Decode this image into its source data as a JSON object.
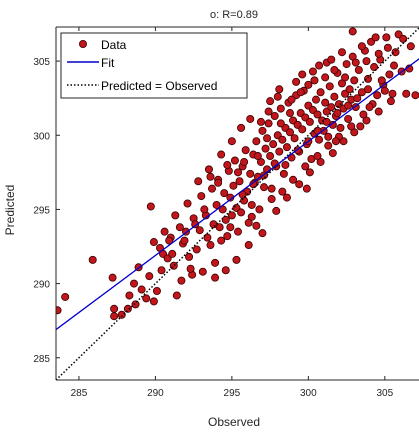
{
  "chart_data": {
    "type": "scatter",
    "title": "o: R=0.89",
    "xlabel": "Observed",
    "ylabel": "Predicted",
    "xlim": [
      283.5,
      307.3
    ],
    "ylim": [
      283.5,
      307.3
    ],
    "xticks": [
      285,
      290,
      295,
      300,
      305
    ],
    "yticks": [
      285,
      290,
      295,
      300,
      305
    ],
    "grid": false,
    "legend_position": "top-left",
    "legend": [
      {
        "label": "Data",
        "marker": "circle",
        "color": "#c0161c"
      },
      {
        "label": "Fit",
        "line": "solid",
        "color": "#0000cc"
      },
      {
        "label": "Predicted = Observed",
        "line": "dotted",
        "color": "#000000"
      }
    ],
    "colors": {
      "points": "#c0161c",
      "point_edge": "#3a0000",
      "fit": "#0000cc",
      "identity": "#000000"
    },
    "series": [
      {
        "name": "Data",
        "points": [
          [
            283.6,
            288.2
          ],
          [
            284.1,
            289.1
          ],
          [
            285.9,
            291.6
          ],
          [
            287.2,
            290.4
          ],
          [
            287.3,
            288.3
          ],
          [
            287.3,
            287.8
          ],
          [
            287.8,
            287.9
          ],
          [
            288.2,
            288.3
          ],
          [
            288.6,
            290.0
          ],
          [
            289.1,
            289.6
          ],
          [
            289.6,
            290.5
          ],
          [
            289.9,
            288.8
          ],
          [
            290.1,
            289.5
          ],
          [
            290.3,
            292.4
          ],
          [
            289.7,
            295.2
          ],
          [
            290.5,
            292.0
          ],
          [
            290.8,
            291.7
          ],
          [
            291.0,
            293.1
          ],
          [
            291.1,
            292.0
          ],
          [
            291.4,
            289.2
          ],
          [
            291.6,
            293.8
          ],
          [
            291.8,
            292.7
          ],
          [
            292.0,
            293.5
          ],
          [
            292.2,
            291.8
          ],
          [
            292.4,
            290.6
          ],
          [
            292.5,
            294.4
          ],
          [
            292.7,
            292.3
          ],
          [
            292.9,
            293.6
          ],
          [
            293.0,
            295.9
          ],
          [
            293.1,
            290.8
          ],
          [
            293.3,
            294.6
          ],
          [
            293.4,
            293.1
          ],
          [
            293.6,
            292.6
          ],
          [
            293.7,
            296.4
          ],
          [
            293.8,
            294.0
          ],
          [
            293.9,
            291.4
          ],
          [
            294.0,
            295.3
          ],
          [
            294.1,
            297.0
          ],
          [
            294.2,
            293.8
          ],
          [
            294.3,
            292.9
          ],
          [
            294.4,
            295.0
          ],
          [
            294.5,
            296.1
          ],
          [
            294.6,
            294.3
          ],
          [
            294.7,
            293.2
          ],
          [
            294.8,
            297.6
          ],
          [
            294.9,
            295.8
          ],
          [
            295.0,
            294.6
          ],
          [
            295.1,
            296.6
          ],
          [
            295.2,
            298.3
          ],
          [
            295.3,
            295.1
          ],
          [
            295.4,
            293.5
          ],
          [
            295.5,
            296.9
          ],
          [
            295.6,
            294.8
          ],
          [
            295.7,
            297.9
          ],
          [
            295.8,
            295.6
          ],
          [
            295.9,
            299.0
          ],
          [
            296.0,
            296.2
          ],
          [
            296.1,
            294.1
          ],
          [
            296.2,
            297.4
          ],
          [
            296.3,
            295.3
          ],
          [
            296.4,
            298.7
          ],
          [
            296.5,
            296.8
          ],
          [
            296.6,
            299.6
          ],
          [
            296.7,
            297.2
          ],
          [
            296.8,
            295.0
          ],
          [
            296.9,
            298.2
          ],
          [
            297.0,
            300.3
          ],
          [
            297.1,
            296.5
          ],
          [
            297.2,
            299.1
          ],
          [
            297.3,
            297.7
          ],
          [
            297.4,
            300.8
          ],
          [
            297.5,
            298.6
          ],
          [
            297.6,
            296.4
          ],
          [
            297.7,
            299.4
          ],
          [
            297.8,
            301.3
          ],
          [
            297.9,
            297.9
          ],
          [
            298.0,
            300.0
          ],
          [
            298.1,
            298.9
          ],
          [
            298.2,
            301.8
          ],
          [
            298.3,
            299.7
          ],
          [
            298.4,
            297.4
          ],
          [
            298.5,
            300.5
          ],
          [
            298.6,
            299.2
          ],
          [
            298.7,
            302.2
          ],
          [
            298.8,
            300.2
          ],
          [
            298.9,
            298.5
          ],
          [
            299.0,
            301.0
          ],
          [
            299.1,
            299.8
          ],
          [
            299.2,
            302.7
          ],
          [
            299.3,
            300.7
          ],
          [
            299.4,
            298.9
          ],
          [
            299.5,
            301.5
          ],
          [
            299.6,
            300.4
          ],
          [
            299.7,
            303.0
          ],
          [
            299.8,
            301.2
          ],
          [
            299.9,
            299.4
          ],
          [
            300.0,
            302.0
          ],
          [
            300.1,
            300.9
          ],
          [
            300.2,
            298.4
          ],
          [
            300.3,
            301.7
          ],
          [
            300.4,
            300.1
          ],
          [
            300.5,
            302.4
          ],
          [
            300.6,
            301.4
          ],
          [
            300.7,
            299.7
          ],
          [
            300.8,
            302.9
          ],
          [
            300.9,
            301.0
          ],
          [
            301.0,
            300.3
          ],
          [
            301.1,
            302.2
          ],
          [
            301.2,
            301.6
          ],
          [
            301.3,
            299.9
          ],
          [
            301.4,
            303.3
          ],
          [
            301.5,
            301.9
          ],
          [
            301.6,
            300.7
          ],
          [
            301.7,
            302.6
          ],
          [
            301.8,
            301.3
          ],
          [
            301.9,
            304.2
          ],
          [
            302.0,
            302.1
          ],
          [
            302.1,
            300.5
          ],
          [
            302.2,
            303.5
          ],
          [
            302.3,
            301.8
          ],
          [
            302.4,
            302.8
          ],
          [
            302.5,
            304.8
          ],
          [
            302.6,
            301.1
          ],
          [
            302.7,
            303.1
          ],
          [
            302.8,
            302.4
          ],
          [
            302.9,
            305.3
          ],
          [
            303.0,
            303.7
          ],
          [
            303.1,
            301.9
          ],
          [
            303.3,
            304.4
          ],
          [
            303.5,
            302.9
          ],
          [
            303.7,
            305.7
          ],
          [
            303.9,
            303.8
          ],
          [
            304.1,
            306.3
          ],
          [
            304.3,
            304.6
          ],
          [
            304.5,
            302.7
          ],
          [
            304.7,
            305.1
          ],
          [
            304.9,
            303.4
          ],
          [
            305.1,
            306.6
          ],
          [
            305.3,
            304.1
          ],
          [
            305.5,
            302.8
          ],
          [
            305.7,
            305.6
          ],
          [
            305.9,
            306.8
          ],
          [
            306.1,
            304.3
          ],
          [
            306.4,
            302.8
          ],
          [
            306.7,
            306.0
          ],
          [
            307.0,
            302.7
          ],
          [
            306.2,
            306.5
          ],
          [
            304.4,
            306.6
          ],
          [
            303.5,
            306.0
          ],
          [
            302.9,
            307.0
          ],
          [
            301.2,
            304.9
          ],
          [
            300.3,
            304.3
          ],
          [
            299.2,
            303.6
          ],
          [
            298.1,
            303.1
          ],
          [
            297.5,
            302.3
          ],
          [
            296.2,
            301.1
          ],
          [
            295.6,
            300.5
          ],
          [
            295.0,
            299.6
          ],
          [
            294.3,
            298.7
          ],
          [
            293.5,
            297.7
          ],
          [
            292.8,
            296.9
          ],
          [
            292.1,
            295.4
          ],
          [
            291.3,
            294.6
          ],
          [
            290.6,
            293.5
          ],
          [
            289.9,
            292.8
          ],
          [
            288.9,
            291.1
          ],
          [
            288.3,
            289.2
          ],
          [
            295.3,
            291.6
          ],
          [
            296.1,
            292.6
          ],
          [
            297.0,
            293.4
          ],
          [
            297.9,
            294.9
          ],
          [
            298.6,
            295.8
          ],
          [
            299.4,
            296.7
          ],
          [
            300.1,
            297.5
          ],
          [
            300.8,
            298.2
          ],
          [
            301.6,
            298.8
          ],
          [
            302.3,
            299.6
          ],
          [
            303.0,
            300.2
          ],
          [
            303.8,
            301.0
          ],
          [
            304.6,
            301.6
          ],
          [
            305.4,
            302.3
          ],
          [
            294.6,
            290.9
          ],
          [
            293.9,
            290.4
          ],
          [
            296.6,
            293.9
          ],
          [
            298.3,
            296.2
          ],
          [
            299.0,
            297.0
          ],
          [
            299.8,
            297.9
          ],
          [
            300.6,
            298.6
          ],
          [
            301.3,
            299.3
          ],
          [
            302.0,
            299.9
          ],
          [
            302.8,
            300.6
          ],
          [
            303.6,
            301.4
          ],
          [
            304.2,
            302.1
          ],
          [
            305.0,
            303.0
          ],
          [
            294.1,
            296.8
          ],
          [
            295.8,
            298.2
          ],
          [
            297.3,
            299.8
          ],
          [
            298.8,
            301.5
          ],
          [
            300.0,
            303.4
          ],
          [
            301.5,
            305.1
          ],
          [
            302.2,
            305.6
          ],
          [
            296.9,
            300.9
          ],
          [
            298.0,
            302.6
          ],
          [
            299.6,
            304.1
          ],
          [
            300.7,
            304.7
          ],
          [
            293.2,
            295.0
          ],
          [
            292.6,
            294.0
          ],
          [
            291.9,
            292.9
          ],
          [
            291.2,
            291.2
          ],
          [
            290.4,
            290.9
          ],
          [
            289.4,
            289.0
          ],
          [
            288.7,
            288.6
          ],
          [
            295.7,
            296.0
          ],
          [
            296.4,
            296.7
          ],
          [
            297.1,
            297.3
          ],
          [
            297.8,
            298.1
          ],
          [
            298.5,
            298.0
          ],
          [
            299.3,
            299.0
          ],
          [
            300.0,
            299.6
          ],
          [
            300.6,
            300.3
          ],
          [
            301.2,
            300.9
          ],
          [
            301.9,
            301.5
          ],
          [
            302.6,
            302.0
          ],
          [
            303.2,
            302.5
          ],
          [
            303.9,
            303.1
          ],
          [
            304.8,
            303.7
          ],
          [
            305.6,
            304.7
          ],
          [
            306.6,
            304.5
          ],
          [
            294.9,
            293.8
          ],
          [
            296.3,
            294.5
          ],
          [
            297.6,
            295.7
          ],
          [
            299.9,
            296.4
          ],
          [
            301.8,
            299.6
          ],
          [
            303.4,
            300.6
          ],
          [
            304.0,
            301.9
          ],
          [
            292.3,
            291.0
          ],
          [
            291.7,
            290.2
          ],
          [
            290.9,
            292.9
          ],
          [
            293.6,
            297.2
          ],
          [
            294.7,
            298.0
          ],
          [
            295.4,
            297.5
          ],
          [
            296.7,
            298.6
          ],
          [
            297.4,
            301.6
          ],
          [
            298.2,
            300.8
          ],
          [
            298.9,
            302.4
          ],
          [
            299.5,
            302.9
          ],
          [
            300.4,
            303.7
          ],
          [
            301.1,
            303.9
          ],
          [
            301.7,
            304.4
          ],
          [
            302.4,
            303.9
          ],
          [
            303.1,
            304.9
          ],
          [
            303.8,
            305.0
          ],
          [
            304.6,
            305.5
          ],
          [
            305.2,
            305.9
          ]
        ]
      }
    ],
    "fit_line": {
      "x": [
        283.5,
        307.3
      ],
      "y": [
        286.9,
        305.2
      ]
    },
    "identity_line": {
      "x": [
        283.5,
        307.3
      ],
      "y": [
        283.5,
        307.3
      ]
    }
  }
}
